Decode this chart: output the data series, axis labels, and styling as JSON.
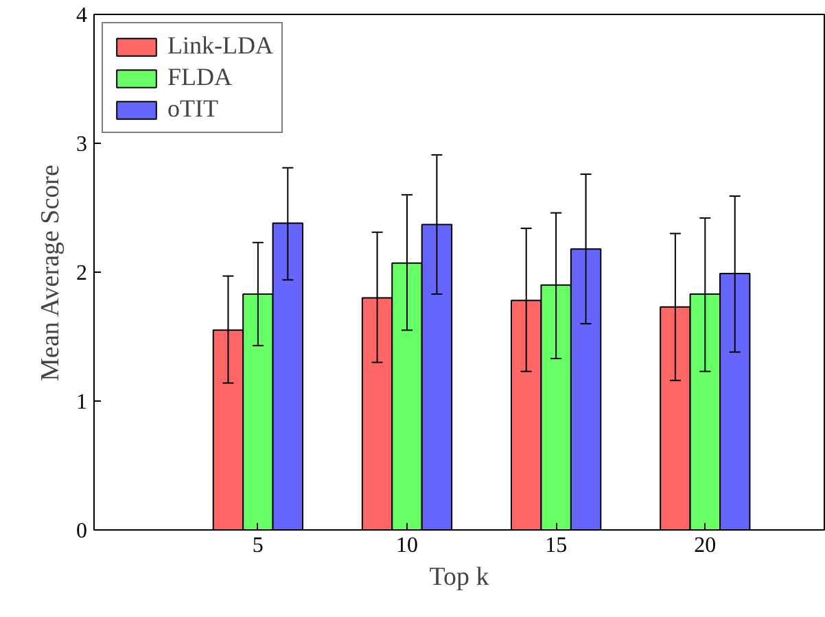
{
  "chart_data": {
    "type": "bar",
    "xlabel": "Top k",
    "ylabel": "Mean Average Score",
    "x": [
      5,
      10,
      15,
      20
    ],
    "xlim": [
      -0.5,
      24
    ],
    "xticks": [
      5,
      10,
      15,
      20
    ],
    "ylim": [
      0,
      4
    ],
    "yticks": [
      0,
      1,
      2,
      3,
      4
    ],
    "grid": false,
    "legend": "top left",
    "series": [
      {
        "name": "Link-LDA",
        "color": "#ff6666",
        "values": [
          1.55,
          1.8,
          1.78,
          1.73
        ],
        "errors": [
          [
            1.14,
            1.97
          ],
          [
            1.3,
            2.31
          ],
          [
            1.23,
            2.34
          ],
          [
            1.16,
            2.3
          ]
        ]
      },
      {
        "name": "FLDA",
        "color": "#66ff66",
        "values": [
          1.83,
          2.07,
          1.9,
          1.83
        ],
        "errors": [
          [
            1.43,
            2.23
          ],
          [
            1.55,
            2.6
          ],
          [
            1.33,
            2.46
          ],
          [
            1.23,
            2.42
          ]
        ]
      },
      {
        "name": "oTIT",
        "color": "#6666ff",
        "values": [
          2.38,
          2.37,
          2.18,
          1.99
        ],
        "errors": [
          [
            1.94,
            2.81
          ],
          [
            1.83,
            2.91
          ],
          [
            1.6,
            2.76
          ],
          [
            1.38,
            2.59
          ]
        ]
      }
    ]
  }
}
